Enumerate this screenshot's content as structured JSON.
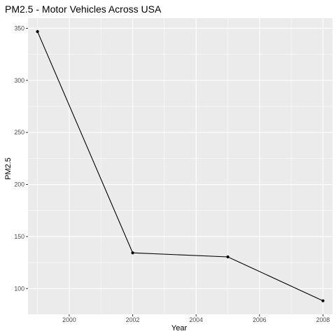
{
  "chart_data": {
    "type": "line",
    "title": "PM2.5 - Motor Vehicles Across USA",
    "xlabel": "Year",
    "ylabel": "PM2.5",
    "x": [
      1999,
      2002,
      2005,
      2008
    ],
    "y": [
      346.82,
      134.31,
      130.43,
      88.28
    ],
    "xlim": [
      1998.7,
      2008.3
    ],
    "ylim": [
      75.3,
      359.7
    ],
    "xticks": [
      2000,
      2002,
      2004,
      2006,
      2008
    ],
    "xtick_labels": [
      "2000",
      "2002",
      "2004",
      "2006",
      "2008"
    ],
    "yticks": [
      100,
      150,
      200,
      250,
      300,
      350
    ],
    "ytick_labels": [
      "100",
      "150",
      "200",
      "250",
      "300",
      "350"
    ],
    "grid": true,
    "colors": {
      "panel": "#ebebeb",
      "grid_major": "#ffffff",
      "line": "#000000",
      "point": "#000000"
    }
  }
}
